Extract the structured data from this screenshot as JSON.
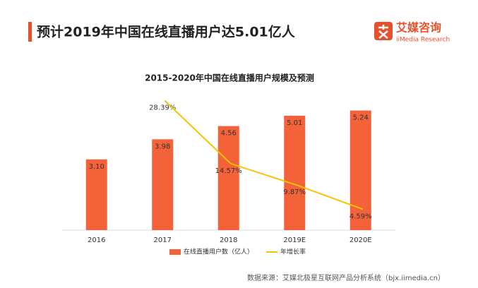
{
  "header": {
    "title": "预计2019年中国在线直播用户达5.01亿人",
    "logo": "艾媒咨询",
    "logo_sub": "iiMedia Research"
  },
  "chart_data": {
    "type": "bar",
    "title": "2015-2020年中国在线直播用户规模及预测",
    "categories": [
      "2016",
      "2017",
      "2018",
      "2019E",
      "2020E"
    ],
    "series": [
      {
        "name": "在线直播用户数（亿人）",
        "color": "#f4623a",
        "values": [
          3.1,
          3.98,
          4.56,
          5.01,
          5.24
        ],
        "value_labels": [
          "3.10",
          "3.98",
          "4.56",
          "5.01",
          "5.24"
        ]
      },
      {
        "name": "年增长率",
        "color": "#f5c400",
        "axis": "y2",
        "type": "line",
        "values": [
          null,
          28.39,
          14.57,
          9.87,
          4.59
        ],
        "value_labels": [
          null,
          "28.39%",
          "14.57%",
          "9.87%",
          "4.59%"
        ]
      }
    ],
    "ylim": [
      0,
      6
    ],
    "y2lim": [
      0,
      30
    ],
    "legend": "bottom"
  },
  "footer": {
    "source": "数据来源：艾媒北极星互联网产品分析系统（bjx.iimedia.cn）"
  }
}
